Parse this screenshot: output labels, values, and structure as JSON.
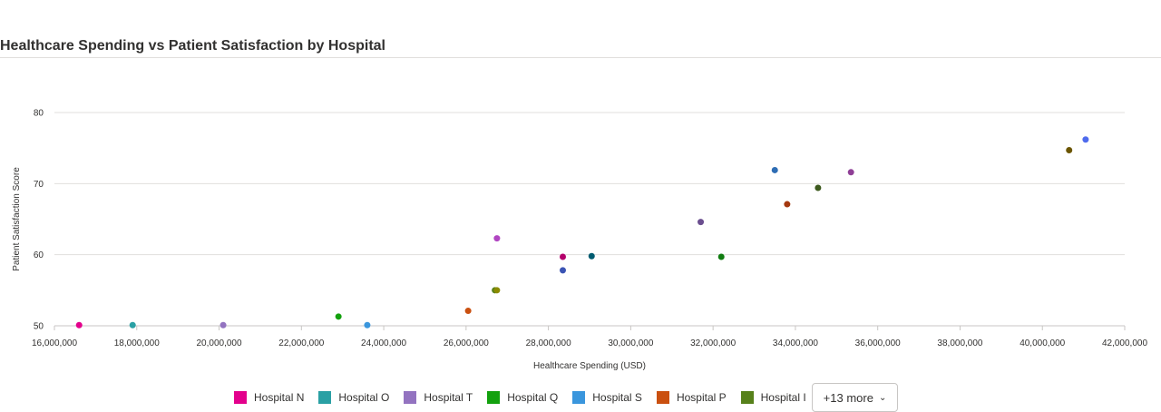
{
  "title": "Healthcare Spending vs Patient Satisfaction by Hospital",
  "legend": {
    "items": [
      {
        "label": "Hospital N",
        "color": "#e3008c"
      },
      {
        "label": "Hospital O",
        "color": "#2aa0a4"
      },
      {
        "label": "Hospital T",
        "color": "#9373c0"
      },
      {
        "label": "Hospital Q",
        "color": "#13a10e"
      },
      {
        "label": "Hospital S",
        "color": "#3a96dd"
      },
      {
        "label": "Hospital P",
        "color": "#ca5010"
      },
      {
        "label": "Hospital I",
        "color": "#57811b"
      }
    ],
    "more_label": "+13 more"
  },
  "chart_data": {
    "type": "scatter",
    "title": "Healthcare Spending vs Patient Satisfaction by Hospital",
    "xlabel": "Healthcare Spending (USD)",
    "ylabel": "Patient Satisfaction Score",
    "xlim": [
      16000000,
      42000000
    ],
    "ylim": [
      50,
      80
    ],
    "xticks": [
      "16,000,000",
      "18,000,000",
      "20,000,000",
      "22,000,000",
      "24,000,000",
      "26,000,000",
      "28,000,000",
      "30,000,000",
      "32,000,000",
      "34,000,000",
      "36,000,000",
      "38,000,000",
      "40,000,000",
      "42,000,000"
    ],
    "yticks": [
      "50",
      "60",
      "70",
      "80"
    ],
    "grid": true,
    "legend_position": "bottom",
    "points": [
      {
        "x": 16600000,
        "y": 50.1,
        "color": "#e3008c"
      },
      {
        "x": 17900000,
        "y": 50.1,
        "color": "#2aa0a4"
      },
      {
        "x": 20100000,
        "y": 50.1,
        "color": "#9373c0"
      },
      {
        "x": 22900000,
        "y": 51.3,
        "color": "#13a10e"
      },
      {
        "x": 23600000,
        "y": 50.1,
        "color": "#3a96dd"
      },
      {
        "x": 26050000,
        "y": 52.1,
        "color": "#ca5010"
      },
      {
        "x": 26700000,
        "y": 55.0,
        "color": "#57811b"
      },
      {
        "x": 26750000,
        "y": 55.0,
        "color": "#8b8b00"
      },
      {
        "x": 26750000,
        "y": 62.3,
        "color": "#b146c2"
      },
      {
        "x": 28350000,
        "y": 59.7,
        "color": "#b4006b"
      },
      {
        "x": 28350000,
        "y": 57.8,
        "color": "#3b54b4"
      },
      {
        "x": 29050000,
        "y": 59.8,
        "color": "#005b70"
      },
      {
        "x": 31700000,
        "y": 64.6,
        "color": "#6b4f8f"
      },
      {
        "x": 32200000,
        "y": 59.7,
        "color": "#107c10"
      },
      {
        "x": 33500000,
        "y": 71.9,
        "color": "#2e6db4"
      },
      {
        "x": 33800000,
        "y": 67.1,
        "color": "#a4380f"
      },
      {
        "x": 34550000,
        "y": 69.4,
        "color": "#3d5a1e"
      },
      {
        "x": 35350000,
        "y": 71.6,
        "color": "#8f3f96"
      },
      {
        "x": 40650000,
        "y": 74.7,
        "color": "#6b5500"
      },
      {
        "x": 41050000,
        "y": 76.2,
        "color": "#4f6bed"
      }
    ]
  }
}
